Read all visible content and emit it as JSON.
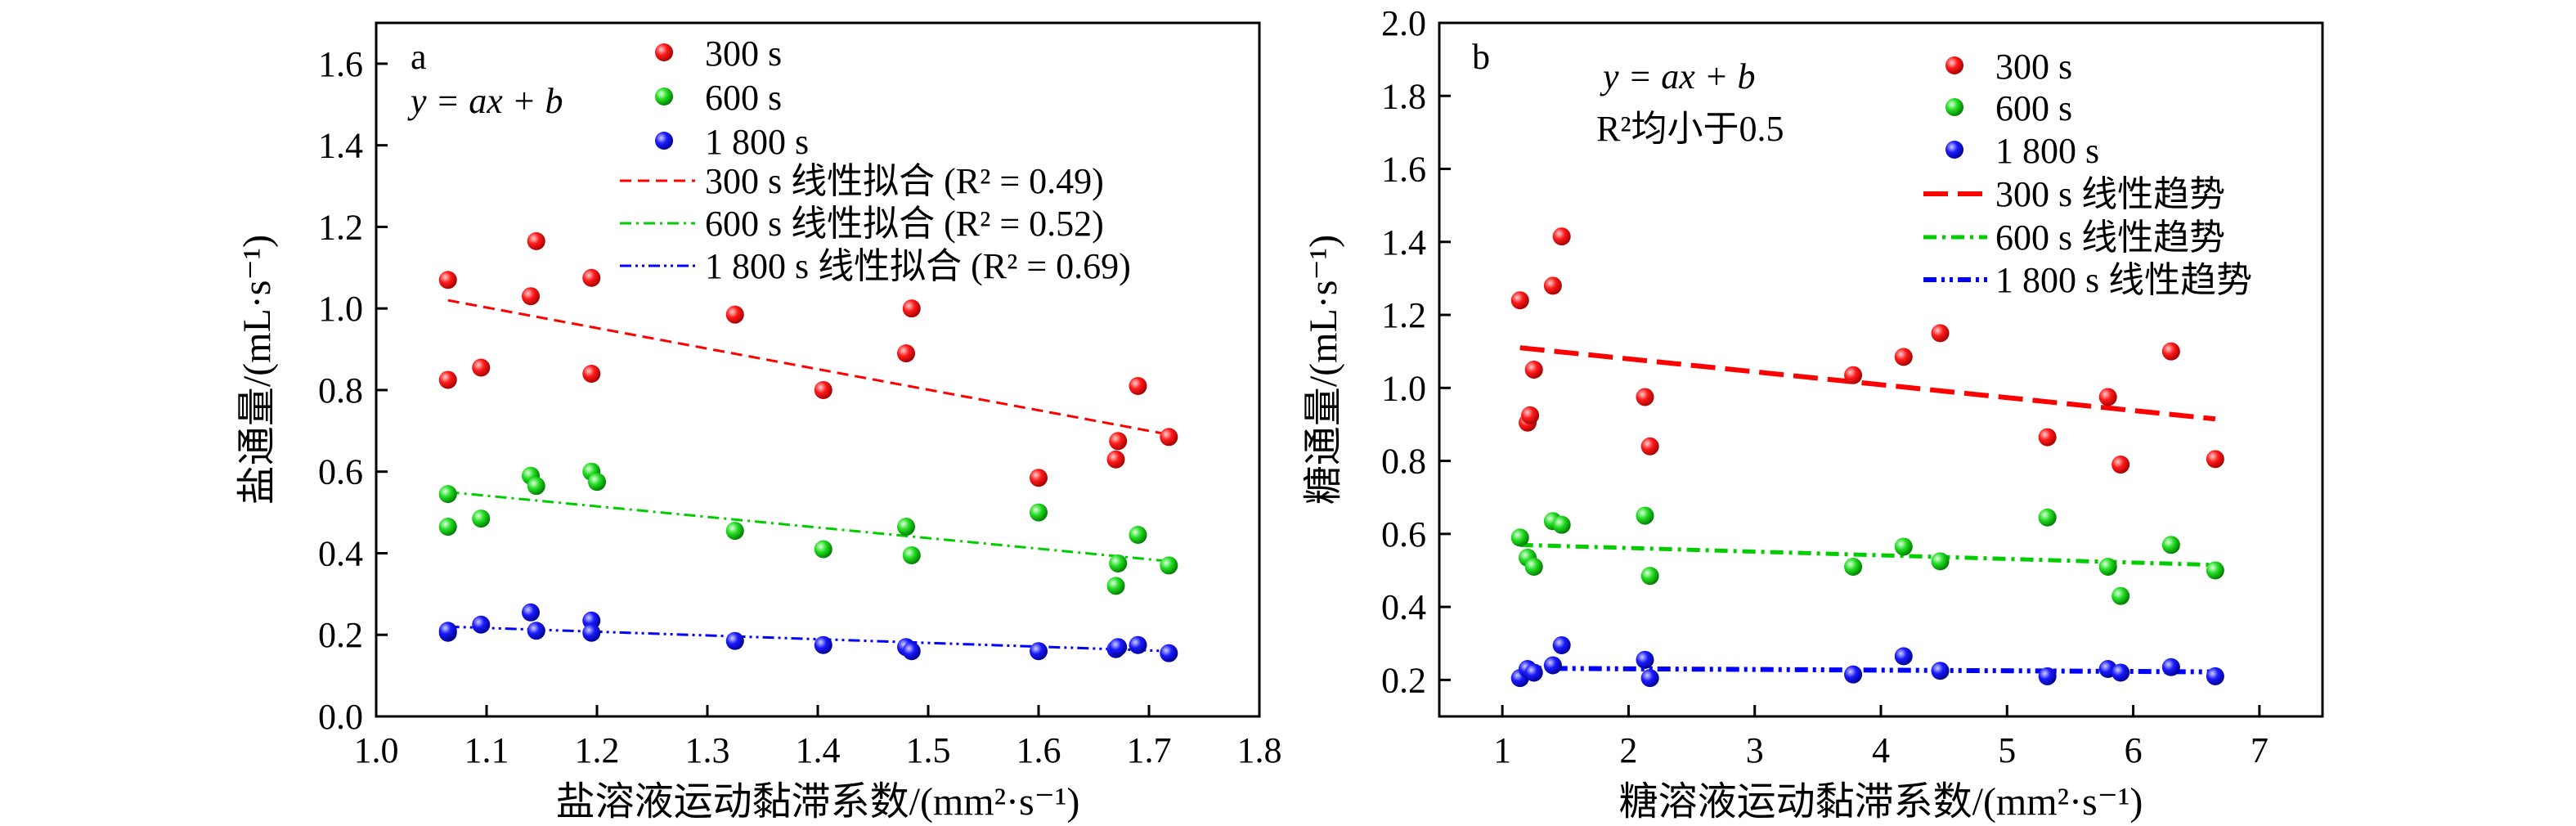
{
  "charts": [
    {
      "letter": "a",
      "annotations": [
        "y = ax + b"
      ],
      "xlabel": "盐溶液运动黏滞系数/(mm²·s⁻¹)",
      "ylabel": "盐通量/(mL·s⁻¹)",
      "xlim": [
        1.0,
        1.8
      ],
      "ylim": [
        0.0,
        1.7
      ],
      "xticks": [
        1.0,
        1.1,
        1.2,
        1.3,
        1.4,
        1.5,
        1.6,
        1.7,
        1.8
      ],
      "yticks": [
        0.0,
        0.2,
        0.4,
        0.6,
        0.8,
        1.0,
        1.2,
        1.4,
        1.6
      ],
      "xtick_labels": [
        "1.0",
        "1.1",
        "1.2",
        "1.3",
        "1.4",
        "1.5",
        "1.6",
        "1.7",
        "1.8"
      ],
      "ytick_labels": [
        "0.0",
        "0.2",
        "0.4",
        "0.6",
        "0.8",
        "1.0",
        "1.2",
        "1.4",
        "1.6"
      ],
      "legend_points": [
        "300 s",
        "600 s",
        "1 800 s"
      ],
      "legend_lines": [
        "300 s 线性拟合 (R² = 0.49)",
        "600 s 线性拟合 (R² = 0.52)",
        "1 800 s 线性拟合 (R² = 0.69)"
      ]
    },
    {
      "letter": "b",
      "annotations": [
        "y = ax + b",
        "R²均小于0.5"
      ],
      "xlabel": "糖溶液运动黏滞系数/(mm²·s⁻¹)",
      "ylabel": "糖通量/(mL·s⁻¹)",
      "xlim": [
        0.5,
        7.5
      ],
      "ylim": [
        0.1,
        2.0
      ],
      "xticks": [
        1,
        2,
        3,
        4,
        5,
        6,
        7
      ],
      "yticks": [
        0.2,
        0.4,
        0.6,
        0.8,
        1.0,
        1.2,
        1.4,
        1.6,
        1.8,
        2.0
      ],
      "xtick_labels": [
        "1",
        "2",
        "3",
        "4",
        "5",
        "6",
        "7"
      ],
      "ytick_labels": [
        "0.2",
        "0.4",
        "0.6",
        "0.8",
        "1.0",
        "1.2",
        "1.4",
        "1.6",
        "1.8",
        "2.0"
      ],
      "legend_points": [
        "300 s",
        "600 s",
        "1 800 s"
      ],
      "legend_lines": [
        "300 s 线性趋势",
        "600 s 线性趋势",
        "1 800 s 线性趋势"
      ]
    }
  ],
  "colors": {
    "red": "#ff0000",
    "green": "#00cc00",
    "blue": "#0000ff"
  },
  "chart_data": [
    {
      "type": "scatter",
      "xlabel": "盐溶液运动黏滞系数/(mm²·s⁻¹)",
      "ylabel": "盐通量/(mL·s⁻¹)",
      "xlim": [
        1.0,
        1.8
      ],
      "ylim": [
        0.0,
        1.7
      ],
      "series": [
        {
          "name": "300 s",
          "color": "red",
          "points": [
            [
              1.065,
              1.07
            ],
            [
              1.065,
              0.825
            ],
            [
              1.095,
              0.855
            ],
            [
              1.14,
              1.03
            ],
            [
              1.145,
              1.165
            ],
            [
              1.195,
              1.075
            ],
            [
              1.195,
              0.84
            ],
            [
              1.325,
              0.985
            ],
            [
              1.405,
              0.8
            ],
            [
              1.48,
              0.89
            ],
            [
              1.485,
              1.0
            ],
            [
              1.6,
              0.585
            ],
            [
              1.67,
              0.63
            ],
            [
              1.672,
              0.675
            ],
            [
              1.69,
              0.81
            ],
            [
              1.718,
              0.685
            ]
          ],
          "fit": {
            "name": "300 s 线性拟合 (R² = 0.49)",
            "x": [
              1.065,
              1.72
            ],
            "y": [
              1.02,
              0.69
            ],
            "dash": "dashed"
          }
        },
        {
          "name": "600 s",
          "color": "green",
          "points": [
            [
              1.065,
              0.545
            ],
            [
              1.065,
              0.465
            ],
            [
              1.095,
              0.485
            ],
            [
              1.14,
              0.59
            ],
            [
              1.145,
              0.565
            ],
            [
              1.195,
              0.6
            ],
            [
              1.2,
              0.575
            ],
            [
              1.325,
              0.455
            ],
            [
              1.405,
              0.41
            ],
            [
              1.48,
              0.465
            ],
            [
              1.485,
              0.395
            ],
            [
              1.6,
              0.5
            ],
            [
              1.67,
              0.32
            ],
            [
              1.672,
              0.375
            ],
            [
              1.69,
              0.445
            ],
            [
              1.718,
              0.37
            ]
          ],
          "fit": {
            "name": "600 s 线性拟合 (R² = 0.52)",
            "x": [
              1.065,
              1.72
            ],
            "y": [
              0.55,
              0.38
            ],
            "dash": "dashdot"
          }
        },
        {
          "name": "1 800 s",
          "color": "blue",
          "points": [
            [
              1.065,
              0.205
            ],
            [
              1.065,
              0.21
            ],
            [
              1.095,
              0.225
            ],
            [
              1.14,
              0.255
            ],
            [
              1.145,
              0.21
            ],
            [
              1.195,
              0.235
            ],
            [
              1.195,
              0.205
            ],
            [
              1.325,
              0.185
            ],
            [
              1.405,
              0.175
            ],
            [
              1.48,
              0.17
            ],
            [
              1.485,
              0.16
            ],
            [
              1.6,
              0.16
            ],
            [
              1.67,
              0.165
            ],
            [
              1.672,
              0.17
            ],
            [
              1.69,
              0.175
            ],
            [
              1.718,
              0.155
            ]
          ],
          "fit": {
            "name": "1 800 s 线性拟合 (R² = 0.69)",
            "x": [
              1.065,
              1.72
            ],
            "y": [
              0.22,
              0.16
            ],
            "dash": "dashdotdot"
          }
        }
      ]
    },
    {
      "type": "scatter",
      "xlabel": "糖溶液运动黏滞系数/(mm²·s⁻¹)",
      "ylabel": "糖通量/(mL·s⁻¹)",
      "xlim": [
        0.5,
        7.5
      ],
      "ylim": [
        0.1,
        2.0
      ],
      "series": [
        {
          "name": "300 s",
          "color": "red",
          "points": [
            [
              1.14,
              1.24
            ],
            [
              1.2,
              0.905
            ],
            [
              1.22,
              0.925
            ],
            [
              1.25,
              1.05
            ],
            [
              1.4,
              1.28
            ],
            [
              1.47,
              1.415
            ],
            [
              2.13,
              0.975
            ],
            [
              2.17,
              0.84
            ],
            [
              3.78,
              1.035
            ],
            [
              4.18,
              1.085
            ],
            [
              4.47,
              1.15
            ],
            [
              5.32,
              0.865
            ],
            [
              5.8,
              0.975
            ],
            [
              5.9,
              0.79
            ],
            [
              6.3,
              1.1
            ],
            [
              6.65,
              0.805
            ]
          ],
          "fit": {
            "name": "300 s 线性趋势",
            "x": [
              1.14,
              6.65
            ],
            "y": [
              1.11,
              0.915
            ],
            "dash": "longdash"
          }
        },
        {
          "name": "600 s",
          "color": "green",
          "points": [
            [
              1.14,
              0.59
            ],
            [
              1.2,
              0.535
            ],
            [
              1.25,
              0.51
            ],
            [
              1.4,
              0.635
            ],
            [
              1.47,
              0.625
            ],
            [
              2.13,
              0.65
            ],
            [
              2.17,
              0.485
            ],
            [
              3.78,
              0.51
            ],
            [
              4.18,
              0.565
            ],
            [
              4.47,
              0.525
            ],
            [
              5.32,
              0.645
            ],
            [
              5.8,
              0.51
            ],
            [
              5.9,
              0.43
            ],
            [
              6.3,
              0.57
            ],
            [
              6.65,
              0.5
            ]
          ],
          "fit": {
            "name": "600 s 线性趋势",
            "x": [
              1.14,
              6.65
            ],
            "y": [
              0.57,
              0.515
            ],
            "dash": "dashdot"
          }
        },
        {
          "name": "1 800 s",
          "color": "blue",
          "points": [
            [
              1.14,
              0.205
            ],
            [
              1.2,
              0.23
            ],
            [
              1.25,
              0.22
            ],
            [
              1.4,
              0.24
            ],
            [
              1.47,
              0.295
            ],
            [
              2.13,
              0.255
            ],
            [
              2.17,
              0.205
            ],
            [
              3.78,
              0.215
            ],
            [
              4.18,
              0.265
            ],
            [
              4.47,
              0.225
            ],
            [
              5.32,
              0.21
            ],
            [
              5.8,
              0.23
            ],
            [
              5.9,
              0.22
            ],
            [
              6.3,
              0.235
            ],
            [
              6.65,
              0.21
            ]
          ],
          "fit": {
            "name": "1 800 s 线性趋势",
            "x": [
              1.14,
              6.65
            ],
            "y": [
              0.232,
              0.222
            ],
            "dash": "dashdotdot"
          }
        }
      ]
    }
  ]
}
